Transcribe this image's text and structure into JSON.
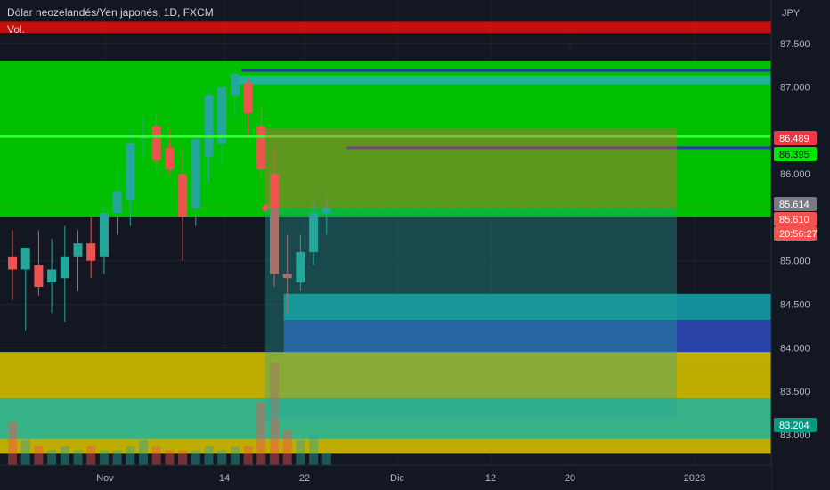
{
  "header": {
    "symbol_line": "Dólar neozelandés/Yen japonés, 1D, FXCM",
    "volume_label": "Vol."
  },
  "price_axis": {
    "currency": "JPY",
    "tick_labels": [
      "87.500",
      "87.000",
      "86.000",
      "85.000",
      "84.500",
      "84.000",
      "83.500",
      "83.000"
    ]
  },
  "time_axis": {
    "tick_labels": [
      "Nov",
      "14",
      "22",
      "Dic",
      "12",
      "20",
      "2023"
    ]
  },
  "price_badges": [
    {
      "label": "86.489",
      "value": 86.489,
      "bg": "#f23645",
      "fg": "#ffffff"
    },
    {
      "label": "86.395",
      "value": 86.395,
      "bg": "#00e600",
      "fg": "#131722"
    },
    {
      "label": "85.614",
      "value": 85.614,
      "bg": "#787b86",
      "fg": "#ffffff"
    },
    {
      "label": "85.610",
      "value": 85.61,
      "bg": "#f05350",
      "fg": "#ffffff"
    },
    {
      "label": "20:56:27",
      "value": 85.51,
      "bg": "#f05350",
      "fg": "#ffffff"
    },
    {
      "label": "83.204",
      "value": 83.204,
      "bg": "#089981",
      "fg": "#ffffff"
    }
  ],
  "colors": {
    "background": "#131722",
    "bull": "#26a69a",
    "bear": "#ef5350",
    "green_zone": "#00c800",
    "red_zone": "#d01010",
    "yellow_zone": "#c8b400",
    "cyan_zone": "#1eb4a0",
    "blue_zone": "#2a45b0",
    "teal_zone": "#1496a0"
  },
  "chart_data": {
    "type": "candlestick",
    "title": "Dólar neozelandés/Yen japonés, 1D, FXCM",
    "ylabel": "JPY",
    "ylim": [
      82.65,
      88.0
    ],
    "x_tick_labels": [
      "Nov",
      "14",
      "22",
      "Dic",
      "12",
      "20",
      "2023"
    ],
    "y_tick_labels": [
      "87.500",
      "87.000",
      "86.000",
      "85.000",
      "84.500",
      "84.000",
      "83.500",
      "83.000"
    ],
    "candles": [
      {
        "o": 85.05,
        "h": 85.35,
        "l": 84.55,
        "c": 84.9
      },
      {
        "o": 84.9,
        "h": 85.1,
        "l": 84.2,
        "c": 85.15
      },
      {
        "o": 84.95,
        "h": 85.35,
        "l": 84.6,
        "c": 84.7
      },
      {
        "o": 84.75,
        "h": 85.25,
        "l": 84.4,
        "c": 84.9
      },
      {
        "o": 84.8,
        "h": 85.4,
        "l": 84.3,
        "c": 85.05
      },
      {
        "o": 85.05,
        "h": 85.35,
        "l": 84.65,
        "c": 85.2
      },
      {
        "o": 85.2,
        "h": 85.5,
        "l": 84.8,
        "c": 85.0
      },
      {
        "o": 85.05,
        "h": 85.6,
        "l": 84.85,
        "c": 85.55
      },
      {
        "o": 85.55,
        "h": 86.1,
        "l": 85.3,
        "c": 85.8
      },
      {
        "o": 85.7,
        "h": 86.5,
        "l": 85.4,
        "c": 86.35
      },
      {
        "o": 86.4,
        "h": 86.65,
        "l": 86.2,
        "c": 86.45
      },
      {
        "o": 86.55,
        "h": 86.7,
        "l": 86.05,
        "c": 86.15
      },
      {
        "o": 86.3,
        "h": 86.5,
        "l": 86.0,
        "c": 86.05
      },
      {
        "o": 86.0,
        "h": 86.3,
        "l": 85.0,
        "c": 85.5
      },
      {
        "o": 85.6,
        "h": 86.45,
        "l": 85.4,
        "c": 86.4
      },
      {
        "o": 86.2,
        "h": 86.95,
        "l": 85.9,
        "c": 86.9
      },
      {
        "o": 86.35,
        "h": 87.0,
        "l": 86.1,
        "c": 87.0
      },
      {
        "o": 86.9,
        "h": 87.22,
        "l": 86.65,
        "c": 87.15
      },
      {
        "o": 87.05,
        "h": 87.1,
        "l": 86.4,
        "c": 86.7
      },
      {
        "o": 86.55,
        "h": 86.8,
        "l": 85.95,
        "c": 86.05
      },
      {
        "o": 86.0,
        "h": 86.3,
        "l": 84.7,
        "c": 84.85
      },
      {
        "o": 84.85,
        "h": 85.3,
        "l": 84.4,
        "c": 84.8
      },
      {
        "o": 84.75,
        "h": 85.3,
        "l": 84.65,
        "c": 85.1
      },
      {
        "o": 85.1,
        "h": 85.7,
        "l": 84.95,
        "c": 85.55
      },
      {
        "o": 85.55,
        "h": 85.75,
        "l": 85.3,
        "c": 85.61
      }
    ],
    "volume": [
      0.35,
      0.2,
      0.15,
      0.12,
      0.15,
      0.12,
      0.15,
      0.12,
      0.12,
      0.15,
      0.2,
      0.15,
      0.12,
      0.12,
      0.12,
      0.15,
      0.12,
      0.15,
      0.15,
      0.5,
      0.82,
      0.28,
      0.2,
      0.25,
      0.1
    ],
    "zones": [
      {
        "name": "red-zone",
        "from": 87.62,
        "to": 87.75,
        "color": "#d01010",
        "x_start": 0,
        "x_end": "end"
      },
      {
        "name": "green-zone",
        "from": 85.5,
        "to": 87.3,
        "color": "#00c800",
        "x_start": 0,
        "x_end": "end"
      },
      {
        "name": "cyan-band",
        "from": 87.03,
        "to": 87.13,
        "color": "#1eb4a0",
        "x_start": 17,
        "x_end": "end"
      },
      {
        "name": "teal-zone",
        "from": 84.32,
        "to": 84.62,
        "color": "#1496a0",
        "x_start": 21,
        "x_end": "end"
      },
      {
        "name": "blue-zone",
        "from": 83.83,
        "to": 84.32,
        "color": "#2a45b0",
        "x_start": 21,
        "x_end": "end"
      },
      {
        "name": "yellow-zone",
        "from": 82.78,
        "to": 83.95,
        "color": "#c8b400",
        "x_start": 0,
        "x_end": "end"
      },
      {
        "name": "cyan-zone",
        "from": 82.95,
        "to": 83.42,
        "color": "#1eb4a0",
        "x_start": 0,
        "x_end": "end"
      }
    ],
    "lines": [
      {
        "name": "bright-green-line",
        "value": 86.43,
        "color": "#32ff32",
        "x_start": 0,
        "x_end": "end"
      },
      {
        "name": "blue-line-top",
        "value": 87.19,
        "color": "#2a3aa0",
        "x_start": 17.5,
        "x_end": "end"
      },
      {
        "name": "blue-line-mid",
        "value": 86.3,
        "color": "#2a3aa0",
        "x_start": 25.5,
        "x_end": "end"
      }
    ],
    "position_tool": {
      "entry": 85.61,
      "stop": 86.52,
      "target": 83.18,
      "x_start": 26.5,
      "x_end": 58.0
    }
  }
}
